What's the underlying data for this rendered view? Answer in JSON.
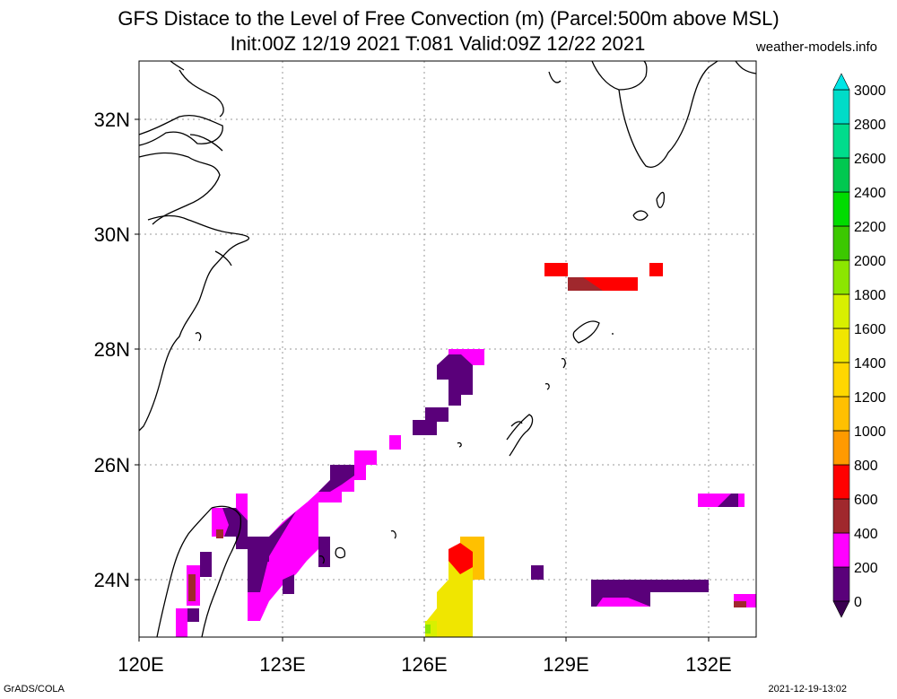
{
  "header": {
    "title_line1": "GFS Distace to the Level of Free Convection (m) (Parcel:500m above MSL)",
    "title_line2": "Init:00Z 12/19 2021 T:081 Valid:09Z 12/22 2021",
    "site": "weather-models.info"
  },
  "footer": {
    "left": "GrADS/COLA",
    "right": "2021-12-19-13:02"
  },
  "map": {
    "lat_labels": [
      "32N",
      "30N",
      "28N",
      "26N",
      "24N"
    ],
    "lon_labels": [
      "120E",
      "123E",
      "126E",
      "129E",
      "132E"
    ]
  },
  "colorbar": {
    "labels": [
      "3000",
      "2800",
      "2600",
      "2400",
      "2200",
      "2000",
      "1800",
      "1600",
      "1400",
      "1200",
      "1000",
      "800",
      "600",
      "400",
      "200",
      "0"
    ],
    "colors": [
      "#5a007a",
      "#ff00ff",
      "#a0282d",
      "#ff0000",
      "#ff9a00",
      "#ffc000",
      "#ffd700",
      "#f0e600",
      "#d8f000",
      "#8ce600",
      "#3cc800",
      "#00dc00",
      "#00c850",
      "#00dc8c",
      "#00dcc8",
      "#00e6e6",
      "#00e6e6"
    ]
  }
}
